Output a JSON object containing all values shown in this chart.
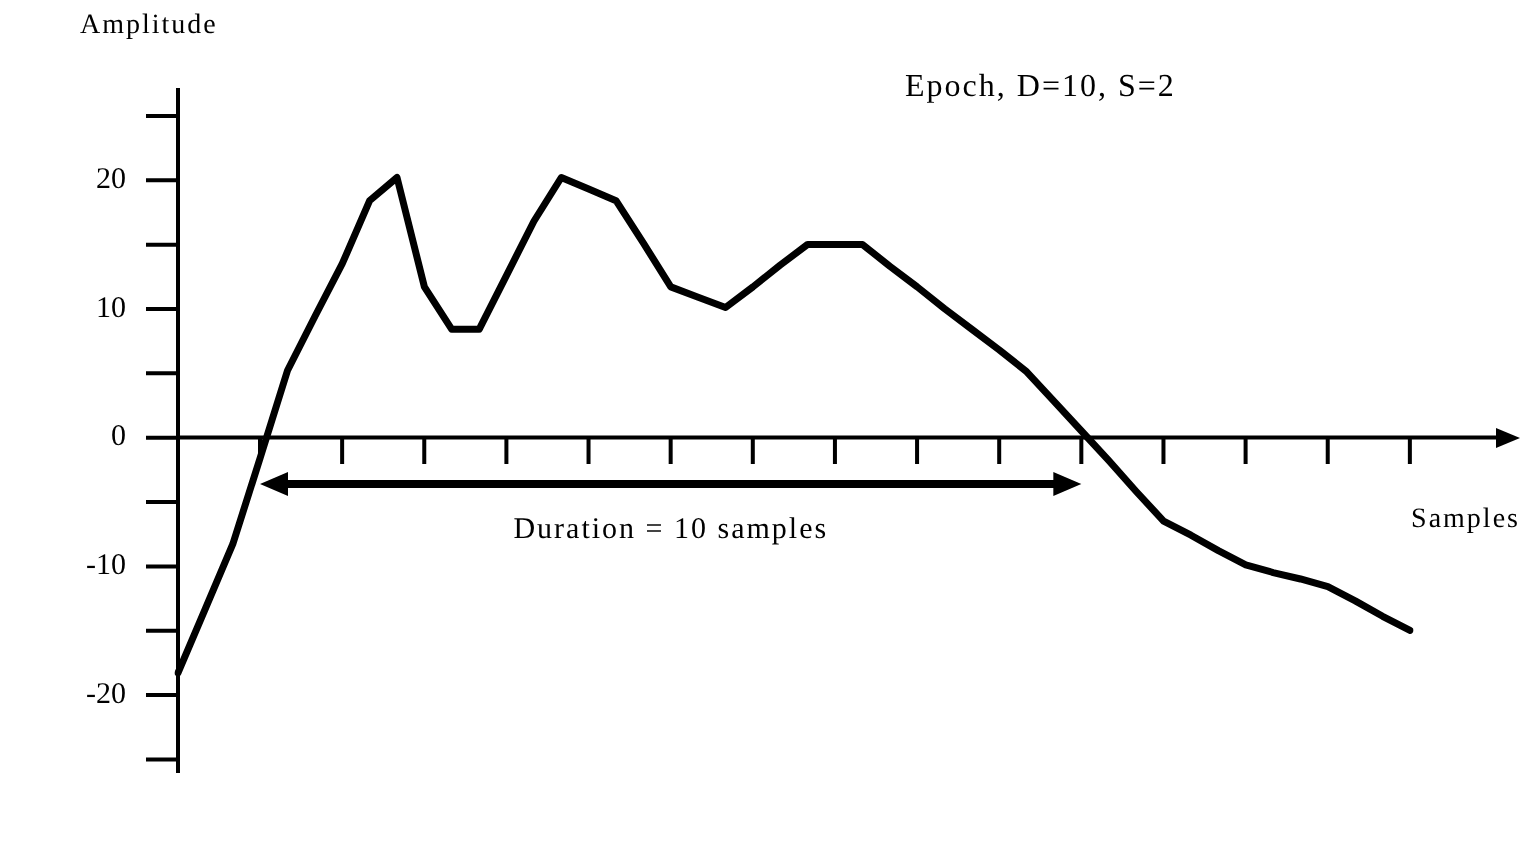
{
  "chart_data": {
    "type": "line",
    "title": "Epoch, D=10, S=2",
    "xlabel": "Samples",
    "ylabel": "Amplitude",
    "annotations": [
      "Duration = 10 samples"
    ],
    "categories": [
      null,
      null,
      null,
      null,
      null,
      null,
      null,
      null,
      null,
      null,
      null,
      null,
      null,
      null,
      null,
      null,
      null,
      null,
      null,
      null,
      null,
      null,
      null,
      null,
      null,
      null,
      null,
      null,
      null,
      null,
      null,
      null,
      null,
      null,
      null,
      null,
      null,
      null,
      null,
      null,
      null,
      null,
      null,
      null,
      null,
      null
    ],
    "series": [
      {
        "color": "#000000",
        "values": [
          -18.3,
          -13.3,
          -8.3,
          -1.6,
          5.2,
          9.4,
          13.5,
          18.4,
          20.2,
          11.7,
          8.4,
          8.4,
          12.6,
          16.8,
          20.2,
          19.3,
          18.4,
          15.1,
          11.7,
          10.9,
          10.1,
          11.7,
          13.4,
          15.0,
          15.0,
          15.0,
          13.3,
          11.7,
          10.0,
          8.4,
          6.8,
          5.1,
          2.8,
          0.5,
          -1.8,
          -4.2,
          -6.5,
          -7.6,
          -8.8,
          -9.9,
          -10.5,
          -11.0,
          -11.6,
          -12.7,
          -13.9,
          -15.0
        ]
      }
    ],
    "ylim": [
      -26,
      27
    ],
    "yticks": [
      {
        "value": -25,
        "label": null
      },
      -20,
      {
        "value": -15,
        "label": null
      },
      -10,
      {
        "value": -5,
        "label": null
      },
      0,
      {
        "value": 5,
        "label": null
      },
      10,
      {
        "value": 15,
        "label": null
      },
      20,
      {
        "value": 25,
        "label": null
      }
    ],
    "ref_lines": [
      {
        "axis": "y",
        "value": 0,
        "color": "#000000"
      }
    ],
    "tick_labels": "y",
    "grid": false,
    "legend": false,
    "marker": "none",
    "line_style": "solid"
  }
}
